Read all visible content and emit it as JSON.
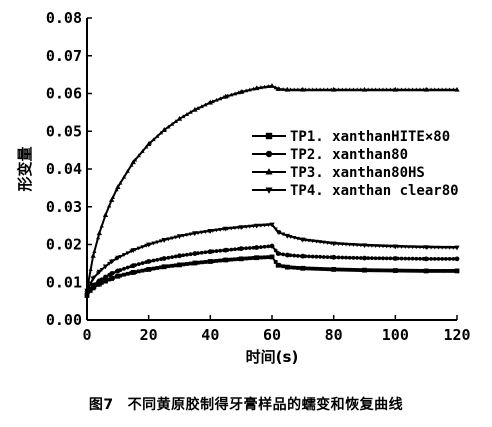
{
  "chart_data": {
    "type": "line",
    "xlabel": "时间(s)",
    "ylabel": "形变量",
    "xlim": [
      0,
      120
    ],
    "ylim": [
      0,
      0.08
    ],
    "x_ticks": [
      "0",
      "20",
      "40",
      "60",
      "80",
      "100",
      "120"
    ],
    "y_ticks": [
      "0.00",
      "0.01",
      "0.02",
      "0.03",
      "0.04",
      "0.05",
      "0.06",
      "0.07",
      "0.08"
    ],
    "grid": false,
    "legend_position": "center-right",
    "x": [
      0,
      2,
      4,
      6,
      8,
      10,
      15,
      20,
      25,
      30,
      35,
      40,
      45,
      50,
      55,
      60,
      62,
      65,
      70,
      80,
      90,
      100,
      110,
      120
    ],
    "series": [
      {
        "name": "TP1. xanthanHITE×80",
        "marker": "square",
        "values": [
          0.0065,
          0.0085,
          0.0095,
          0.0103,
          0.011,
          0.0116,
          0.0126,
          0.0134,
          0.0141,
          0.0146,
          0.0151,
          0.0155,
          0.0159,
          0.0162,
          0.0165,
          0.0167,
          0.0145,
          0.014,
          0.0137,
          0.0134,
          0.0132,
          0.0131,
          0.013,
          0.013
        ]
      },
      {
        "name": "TP2. xanthan80",
        "marker": "circle",
        "values": [
          0.007,
          0.0092,
          0.0104,
          0.0114,
          0.0123,
          0.013,
          0.0144,
          0.0155,
          0.0163,
          0.017,
          0.0176,
          0.0181,
          0.0185,
          0.0189,
          0.0192,
          0.0196,
          0.0176,
          0.0172,
          0.0169,
          0.0166,
          0.0164,
          0.0163,
          0.0162,
          0.0162
        ]
      },
      {
        "name": "TP3. xanthan80HS",
        "marker": "triangle-up",
        "values": [
          0.008,
          0.017,
          0.023,
          0.0278,
          0.0318,
          0.0352,
          0.0418,
          0.0466,
          0.0503,
          0.0533,
          0.0557,
          0.0576,
          0.0592,
          0.0604,
          0.0614,
          0.062,
          0.0612,
          0.061,
          0.061,
          0.061,
          0.061,
          0.061,
          0.061,
          0.061
        ]
      },
      {
        "name": "TP4. xanthan clear80",
        "marker": "triangle-down",
        "values": [
          0.0078,
          0.011,
          0.0128,
          0.0142,
          0.0155,
          0.0165,
          0.0185,
          0.02,
          0.0212,
          0.0222,
          0.023,
          0.0236,
          0.0242,
          0.0246,
          0.025,
          0.0253,
          0.0233,
          0.0223,
          0.0213,
          0.0203,
          0.0198,
          0.0195,
          0.0193,
          0.0192
        ]
      }
    ]
  },
  "caption": {
    "number": "图7",
    "text": "不同黄原胶制得牙膏样品的蠕变和恢复曲线"
  }
}
